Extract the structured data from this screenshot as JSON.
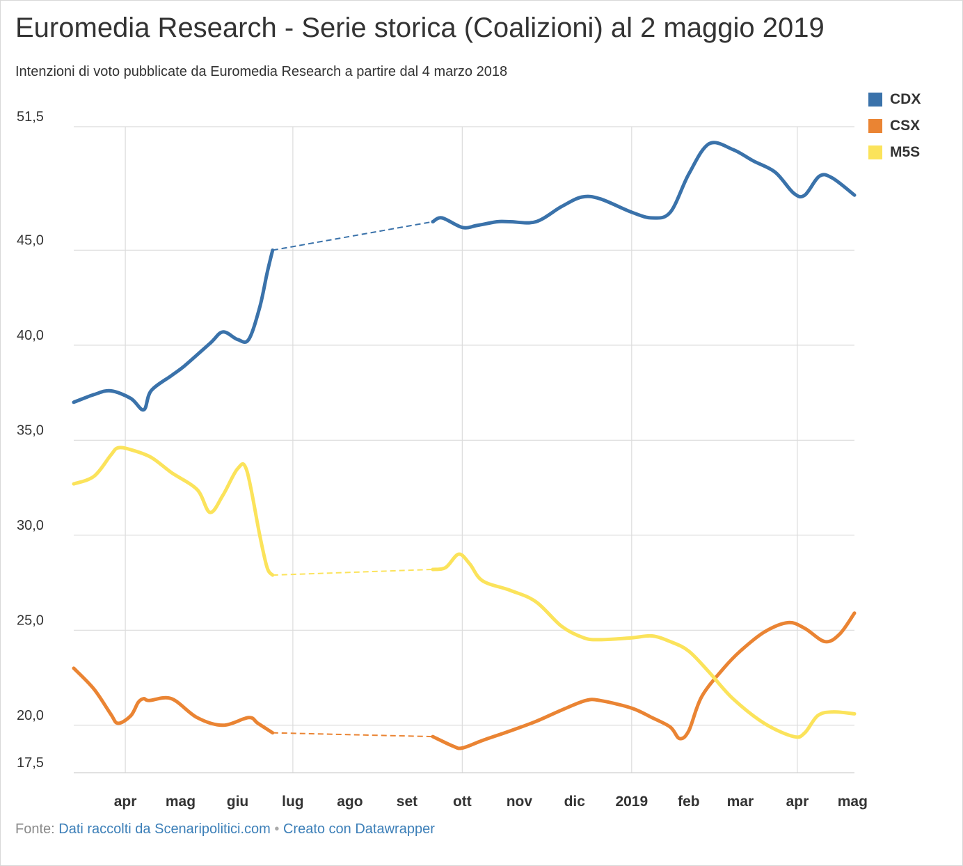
{
  "title": "Euromedia Research - Serie storica (Coalizioni) al 2 maggio 2019",
  "subtitle": "Intenzioni di voto pubblicate da Euromedia Research a partire dal 4 marzo 2018",
  "footer": {
    "prefix": "Fonte:",
    "source": "Dati raccolti da Scenaripolitici.com",
    "separator": "•",
    "credit": "Creato con Datawrapper"
  },
  "chart_data": {
    "type": "line",
    "title": "Euromedia Research - Serie storica (Coalizioni) al 2 maggio 2019",
    "xlabel": "",
    "ylabel": "",
    "xlim": [
      "2018-03-04",
      "2019-05-02"
    ],
    "ylim": [
      17.5,
      51.5
    ],
    "y_ticks": [
      "17,5",
      "20,0",
      "25,0",
      "30,0",
      "35,0",
      "40,0",
      "45,0",
      "51,5"
    ],
    "y_tick_values": [
      17.5,
      20,
      25,
      30,
      35,
      40,
      45,
      51.5
    ],
    "x_ticks": [
      {
        "label": "apr",
        "date": "2018-04-01",
        "bold": true
      },
      {
        "label": "mag",
        "date": "2018-05-01",
        "bold": true
      },
      {
        "label": "giu",
        "date": "2018-06-01",
        "bold": true
      },
      {
        "label": "lug",
        "date": "2018-07-01",
        "bold": true
      },
      {
        "label": "ago",
        "date": "2018-08-01",
        "bold": true
      },
      {
        "label": "set",
        "date": "2018-09-01",
        "bold": true
      },
      {
        "label": "ott",
        "date": "2018-10-01",
        "bold": true
      },
      {
        "label": "nov",
        "date": "2018-11-01",
        "bold": true
      },
      {
        "label": "dic",
        "date": "2018-12-01",
        "bold": true
      },
      {
        "label": "2019",
        "date": "2019-01-01",
        "bold": true
      },
      {
        "label": "feb",
        "date": "2019-02-01",
        "bold": true
      },
      {
        "label": "mar",
        "date": "2019-03-01",
        "bold": true
      },
      {
        "label": "apr",
        "date": "2019-04-01",
        "bold": true
      },
      {
        "label": "mag",
        "date": "2019-05-01",
        "bold": true
      }
    ],
    "vertical_gridlines": [
      "2018-04-01",
      "2018-07-01",
      "2018-10-01",
      "2019-01-01",
      "2019-04-01"
    ],
    "grid": true,
    "legend": "top-right",
    "series": [
      {
        "name": "CDX",
        "color": "#3a72aa",
        "gap": [
          "2018-06-20",
          "2018-09-15"
        ],
        "points": [
          [
            "2018-03-04",
            37.0
          ],
          [
            "2018-03-15",
            37.4
          ],
          [
            "2018-03-24",
            37.6
          ],
          [
            "2018-04-04",
            37.2
          ],
          [
            "2018-04-11",
            36.6
          ],
          [
            "2018-04-15",
            37.6
          ],
          [
            "2018-04-26",
            38.4
          ],
          [
            "2018-05-03",
            38.9
          ],
          [
            "2018-05-17",
            40.1
          ],
          [
            "2018-05-24",
            40.7
          ],
          [
            "2018-06-01",
            40.3
          ],
          [
            "2018-06-07",
            40.3
          ],
          [
            "2018-06-13",
            42.0
          ],
          [
            "2018-06-17",
            43.8
          ],
          [
            "2018-06-20",
            45.0
          ],
          [
            "2018-06-27",
            45.2
          ],
          [
            "2018-09-15",
            46.5
          ],
          [
            "2018-09-20",
            46.7
          ],
          [
            "2018-10-01",
            46.2
          ],
          [
            "2018-10-09",
            46.3
          ],
          [
            "2018-10-20",
            46.5
          ],
          [
            "2018-10-27",
            46.5
          ],
          [
            "2018-11-10",
            46.5
          ],
          [
            "2018-11-24",
            47.3
          ],
          [
            "2018-12-05",
            47.8
          ],
          [
            "2018-12-15",
            47.7
          ],
          [
            "2019-01-01",
            47.0
          ],
          [
            "2019-01-12",
            46.7
          ],
          [
            "2019-01-22",
            47.0
          ],
          [
            "2019-02-01",
            49.0
          ],
          [
            "2019-02-12",
            50.6
          ],
          [
            "2019-02-25",
            50.3
          ],
          [
            "2019-03-08",
            49.7
          ],
          [
            "2019-03-20",
            49.1
          ],
          [
            "2019-03-30",
            48.0
          ],
          [
            "2019-04-05",
            47.9
          ],
          [
            "2019-04-13",
            48.9
          ],
          [
            "2019-04-20",
            48.8
          ],
          [
            "2019-05-02",
            47.9
          ]
        ]
      },
      {
        "name": "CSX",
        "color": "#ea8433",
        "gap": [
          "2018-06-20",
          "2018-09-15"
        ],
        "points": [
          [
            "2018-03-04",
            23.0
          ],
          [
            "2018-03-15",
            21.9
          ],
          [
            "2018-03-24",
            20.6
          ],
          [
            "2018-03-28",
            20.1
          ],
          [
            "2018-04-04",
            20.5
          ],
          [
            "2018-04-08",
            21.2
          ],
          [
            "2018-04-11",
            21.4
          ],
          [
            "2018-04-14",
            21.3
          ],
          [
            "2018-04-26",
            21.4
          ],
          [
            "2018-05-10",
            20.4
          ],
          [
            "2018-05-24",
            20.0
          ],
          [
            "2018-06-07",
            20.4
          ],
          [
            "2018-06-12",
            20.1
          ],
          [
            "2018-06-20",
            19.6
          ],
          [
            "2018-09-15",
            19.4
          ],
          [
            "2018-09-26",
            18.9
          ],
          [
            "2018-10-01",
            18.8
          ],
          [
            "2018-10-12",
            19.2
          ],
          [
            "2018-10-27",
            19.7
          ],
          [
            "2018-11-10",
            20.2
          ],
          [
            "2018-11-24",
            20.8
          ],
          [
            "2018-12-07",
            21.3
          ],
          [
            "2018-12-15",
            21.3
          ],
          [
            "2019-01-01",
            20.9
          ],
          [
            "2019-01-12",
            20.4
          ],
          [
            "2019-01-22",
            19.9
          ],
          [
            "2019-01-27",
            19.3
          ],
          [
            "2019-02-01",
            19.7
          ],
          [
            "2019-02-08",
            21.5
          ],
          [
            "2019-02-20",
            23.0
          ],
          [
            "2019-03-01",
            23.9
          ],
          [
            "2019-03-14",
            24.9
          ],
          [
            "2019-03-27",
            25.4
          ],
          [
            "2019-04-05",
            25.1
          ],
          [
            "2019-04-16",
            24.4
          ],
          [
            "2019-04-24",
            24.8
          ],
          [
            "2019-05-02",
            25.9
          ]
        ]
      },
      {
        "name": "M5S",
        "color": "#fbe35b",
        "gap": [
          "2018-06-20",
          "2018-09-15"
        ],
        "points": [
          [
            "2018-03-04",
            32.7
          ],
          [
            "2018-03-15",
            33.1
          ],
          [
            "2018-03-24",
            34.2
          ],
          [
            "2018-03-28",
            34.6
          ],
          [
            "2018-04-04",
            34.5
          ],
          [
            "2018-04-15",
            34.1
          ],
          [
            "2018-04-26",
            33.3
          ],
          [
            "2018-05-10",
            32.4
          ],
          [
            "2018-05-17",
            31.2
          ],
          [
            "2018-05-24",
            32.1
          ],
          [
            "2018-06-01",
            33.5
          ],
          [
            "2018-06-06",
            33.4
          ],
          [
            "2018-06-13",
            30.0
          ],
          [
            "2018-06-17",
            28.3
          ],
          [
            "2018-06-20",
            27.9
          ],
          [
            "2018-09-15",
            28.2
          ],
          [
            "2018-09-22",
            28.3
          ],
          [
            "2018-09-29",
            29.0
          ],
          [
            "2018-10-05",
            28.5
          ],
          [
            "2018-10-12",
            27.6
          ],
          [
            "2018-10-27",
            27.1
          ],
          [
            "2018-11-10",
            26.5
          ],
          [
            "2018-11-24",
            25.2
          ],
          [
            "2018-12-06",
            24.6
          ],
          [
            "2018-12-15",
            24.5
          ],
          [
            "2019-01-01",
            24.6
          ],
          [
            "2019-01-12",
            24.7
          ],
          [
            "2019-01-22",
            24.4
          ],
          [
            "2019-02-01",
            23.9
          ],
          [
            "2019-02-12",
            22.8
          ],
          [
            "2019-02-25",
            21.4
          ],
          [
            "2019-03-14",
            20.1
          ],
          [
            "2019-03-30",
            19.4
          ],
          [
            "2019-04-05",
            19.6
          ],
          [
            "2019-04-12",
            20.5
          ],
          [
            "2019-04-20",
            20.7
          ],
          [
            "2019-05-02",
            20.6
          ]
        ]
      }
    ]
  }
}
